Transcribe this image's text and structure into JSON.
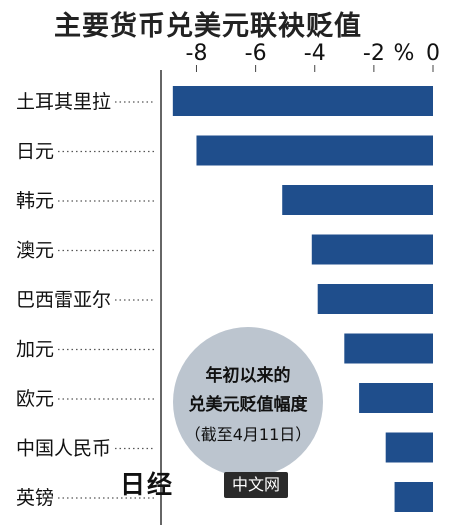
{
  "chart_data": {
    "type": "bar",
    "orientation": "horizontal",
    "title": "主要货币兑美元联袂贬值",
    "unit_label": "%",
    "categories": [
      "土耳其里拉",
      "日元",
      "韩元",
      "澳元",
      "巴西雷亚尔",
      "加元",
      "欧元",
      "中国人民币",
      "英镑"
    ],
    "values": [
      -8.8,
      -8.0,
      -5.1,
      -4.1,
      -3.9,
      -3.0,
      -2.5,
      -1.6,
      -1.3
    ],
    "xlim": [
      -9.2,
      0
    ],
    "x_ticks": [
      -8,
      -6,
      -4,
      -2,
      0
    ],
    "x_tick_labels": [
      "-8",
      "-6",
      "-4",
      "-2",
      "0"
    ],
    "annotation": [
      "年初以来的",
      "兑美元贬值幅度",
      "（截至4月11日）"
    ],
    "bar_color": "#1f4e8c",
    "bubble_color": "#bcc5cf",
    "grid": false
  },
  "watermark": {
    "logo": "日经",
    "site": "中文网"
  }
}
